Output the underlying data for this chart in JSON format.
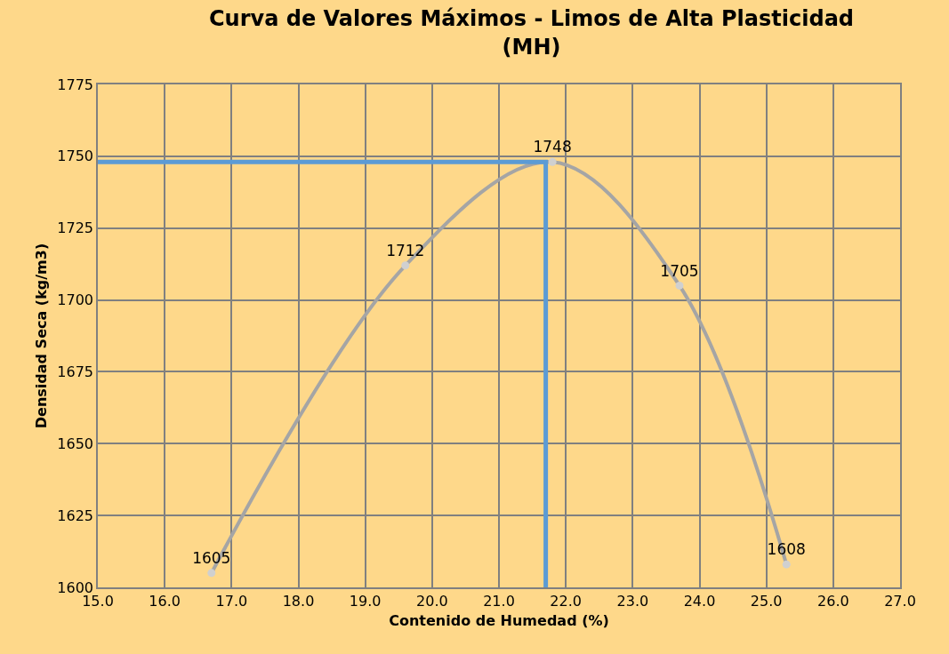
{
  "chart_data": {
    "type": "line",
    "title": "Curva de Valores Máximos - Limos de Alta Plasticidad (MH)",
    "xlabel": "Contenido de Humedad (%)",
    "ylabel": "Densidad Seca (kg/m3)",
    "series": [
      {
        "x": [
          16.7,
          19.6,
          21.8,
          23.7,
          25.3
        ],
        "values": [
          1605,
          1712,
          1748,
          1705,
          1608
        ],
        "color": "#a5a5a5",
        "marker": "circle",
        "value_labels": [
          "1605",
          "1712",
          "1748",
          "1705",
          "1608"
        ]
      },
      {
        "x": [
          15.0,
          21.7,
          21.7
        ],
        "values": [
          1748,
          1748,
          1600
        ],
        "color": "#5b9bd5",
        "marker": "none"
      }
    ],
    "xlim": [
      15.0,
      27.0
    ],
    "xticks": [
      {
        "value": 15,
        "label": "15.0"
      },
      {
        "value": 16,
        "label": "16.0"
      },
      {
        "value": 17,
        "label": "17.0"
      },
      {
        "value": 18,
        "label": "18.0"
      },
      {
        "value": 19,
        "label": "19.0"
      },
      {
        "value": 20,
        "label": "20.0"
      },
      {
        "value": 21,
        "label": "21.0"
      },
      {
        "value": 22,
        "label": "22.0"
      },
      {
        "value": 23,
        "label": "23.0"
      },
      {
        "value": 24,
        "label": "24.0"
      },
      {
        "value": 25,
        "label": "25.0"
      },
      {
        "value": 26,
        "label": "26.0"
      },
      {
        "value": 27,
        "label": "27.0"
      }
    ],
    "ylim": [
      1600,
      1775
    ],
    "yticks": [
      1600,
      1625,
      1650,
      1675,
      1700,
      1725,
      1750,
      1775
    ],
    "grid": true,
    "line_style": "solid"
  }
}
